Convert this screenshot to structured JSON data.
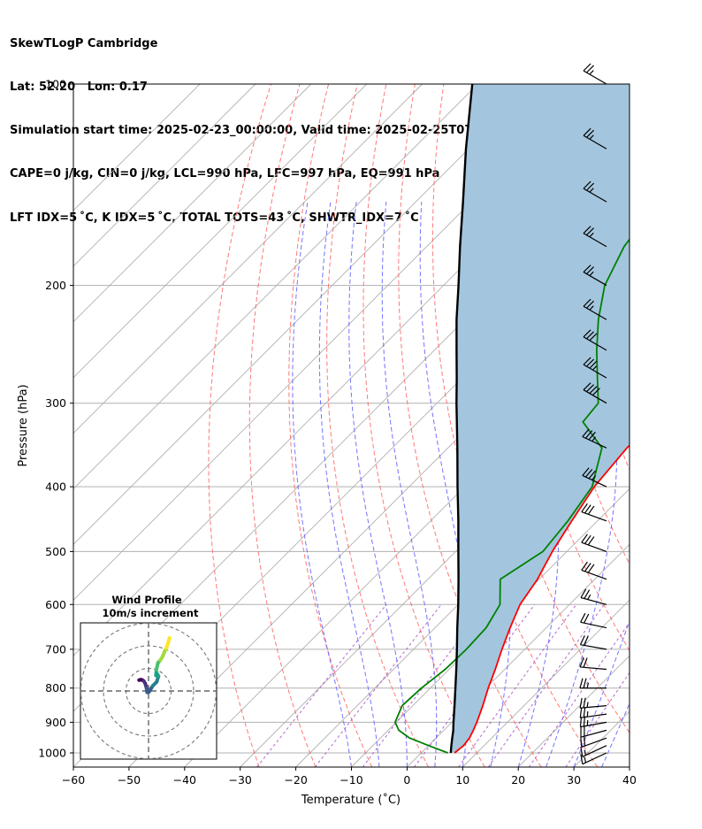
{
  "header": {
    "line1": "SkewTLogP Cambridge",
    "line2": "Lat: 52.20   Lon: 0.17",
    "line3": "Simulation start time: 2025-02-23_00:00:00, Valid time: 2025-02-25T07:00:00.00",
    "line4": "CAPE=0 j/kg, CIN=0 j/kg, LCL=990 hPa, LFC=997 hPa, EQ=991 hPa",
    "line5": "LFT IDX=5 ˚C, K IDX=5 ˚C, TOTAL TOTS=43 ˚C, SHWTR_IDX=7 ˚C"
  },
  "chart_data": {
    "type": "line",
    "title": "SkewTLogP Cambridge",
    "xlabel": "Temperature (˚C)",
    "ylabel": "Pressure (hPa)",
    "xlim": [
      -60,
      40
    ],
    "ylim": [
      1050,
      100
    ],
    "y_scale": "log",
    "grid": true,
    "x_ticks": [
      -60,
      -50,
      -40,
      -30,
      -20,
      -10,
      0,
      10,
      20,
      30,
      40
    ],
    "y_ticks": [
      1000,
      900,
      800,
      700,
      600,
      500,
      400,
      300,
      200,
      100
    ],
    "colors": {
      "temperature": "#ff0000",
      "dewpoint": "#008000",
      "parcel": "#000000",
      "shading": "#a3c6de",
      "dry_adiabat": "#ff6060",
      "moist_adiabat": "#5a5aff",
      "mixing_ratio": "#a040c0",
      "isotherm": "#b0b0b0"
    },
    "series": [
      {
        "name": "Temperature",
        "points": [
          [
            1000,
            6.0
          ],
          [
            975,
            6.3
          ],
          [
            950,
            6.0
          ],
          [
            925,
            5.3
          ],
          [
            900,
            4.5
          ],
          [
            850,
            2.6
          ],
          [
            800,
            0.4
          ],
          [
            750,
            -1.7
          ],
          [
            700,
            -4.1
          ],
          [
            650,
            -6.5
          ],
          [
            600,
            -8.9
          ],
          [
            550,
            -10.3
          ],
          [
            500,
            -12.6
          ],
          [
            450,
            -14.6
          ],
          [
            400,
            -16.7
          ],
          [
            350,
            -17.8
          ],
          [
            300,
            -17.3
          ],
          [
            275,
            -15.8
          ],
          [
            250,
            -12.9
          ],
          [
            225,
            -10.9
          ],
          [
            200,
            -9.7
          ],
          [
            175,
            -8.7
          ],
          [
            150,
            -8.8
          ],
          [
            125,
            -9.3
          ],
          [
            100,
            -10.7
          ]
        ]
      },
      {
        "name": "Dewpoint",
        "points": [
          [
            1000,
            4.8
          ],
          [
            975,
            0.0
          ],
          [
            950,
            -4.8
          ],
          [
            925,
            -8.1
          ],
          [
            900,
            -10.2
          ],
          [
            850,
            -11.9
          ],
          [
            800,
            -11.6
          ],
          [
            750,
            -10.7
          ],
          [
            700,
            -10.5
          ],
          [
            650,
            -10.8
          ],
          [
            600,
            -12.5
          ],
          [
            550,
            -17.0
          ],
          [
            500,
            -14.3
          ],
          [
            450,
            -15.3
          ],
          [
            400,
            -17.1
          ],
          [
            350,
            -22.3
          ],
          [
            320,
            -30.4
          ],
          [
            300,
            -31.0
          ],
          [
            275,
            -35.7
          ],
          [
            250,
            -40.8
          ],
          [
            225,
            -46.0
          ],
          [
            200,
            -51.0
          ],
          [
            175,
            -54.5
          ],
          [
            150,
            -56.5
          ],
          [
            125,
            -56.5
          ],
          [
            100,
            -56.5
          ]
        ]
      },
      {
        "name": "Parcel",
        "points": [
          [
            1000,
            5.3
          ],
          [
            975,
            4.1
          ],
          [
            950,
            2.9
          ],
          [
            925,
            1.7
          ],
          [
            900,
            0.3
          ],
          [
            850,
            -2.5
          ],
          [
            800,
            -5.5
          ],
          [
            750,
            -8.7
          ],
          [
            700,
            -12.2
          ],
          [
            650,
            -16.0
          ],
          [
            600,
            -20.0
          ],
          [
            550,
            -24.5
          ],
          [
            500,
            -29.5
          ],
          [
            450,
            -35.0
          ],
          [
            400,
            -41.3
          ],
          [
            350,
            -48.3
          ],
          [
            300,
            -56.5
          ],
          [
            275,
            -61.0
          ],
          [
            250,
            -66.0
          ],
          [
            225,
            -71.5
          ],
          [
            200,
            -77.3
          ],
          [
            175,
            -84.0
          ],
          [
            150,
            -91.5
          ],
          [
            125,
            -100.5
          ],
          [
            100,
            -111.0
          ]
        ]
      }
    ],
    "wind_barbs": {
      "pressures": [
        1000,
        975,
        950,
        925,
        900,
        875,
        850,
        800,
        750,
        700,
        650,
        600,
        550,
        500,
        450,
        400,
        350,
        300,
        275,
        250,
        225,
        200,
        175,
        150,
        125,
        100
      ],
      "speed_kt": [
        15,
        15,
        20,
        20,
        25,
        25,
        25,
        25,
        20,
        20,
        20,
        25,
        30,
        30,
        30,
        35,
        35,
        40,
        35,
        30,
        25,
        25,
        25,
        25,
        25,
        25
      ],
      "direction_deg": [
        245,
        245,
        250,
        255,
        260,
        262,
        265,
        270,
        275,
        280,
        282,
        285,
        290,
        290,
        290,
        295,
        295,
        300,
        300,
        300,
        300,
        300,
        300,
        300,
        300,
        300
      ]
    },
    "hodograph": {
      "title": "Wind Profile",
      "subtitle": "10m/s increment",
      "rings_ms": [
        10,
        20,
        30
      ],
      "u_ms": [
        -4.2,
        -3.6,
        -2.9,
        -2.1,
        -1.4,
        -0.9,
        -0.6,
        0.2,
        1.8,
        3.6,
        4.4,
        4.0,
        3.3,
        3.5,
        4.2,
        5.2,
        6.1,
        7.0,
        7.9,
        8.6,
        9.3
      ],
      "v_ms": [
        4.8,
        5.0,
        4.9,
        4.4,
        3.2,
        1.2,
        -0.6,
        -0.4,
        2.2,
        4.0,
        6.5,
        7.4,
        6.9,
        9.5,
        12.5,
        13.6,
        15.0,
        17.2,
        19.0,
        21.0,
        23.5
      ]
    }
  }
}
